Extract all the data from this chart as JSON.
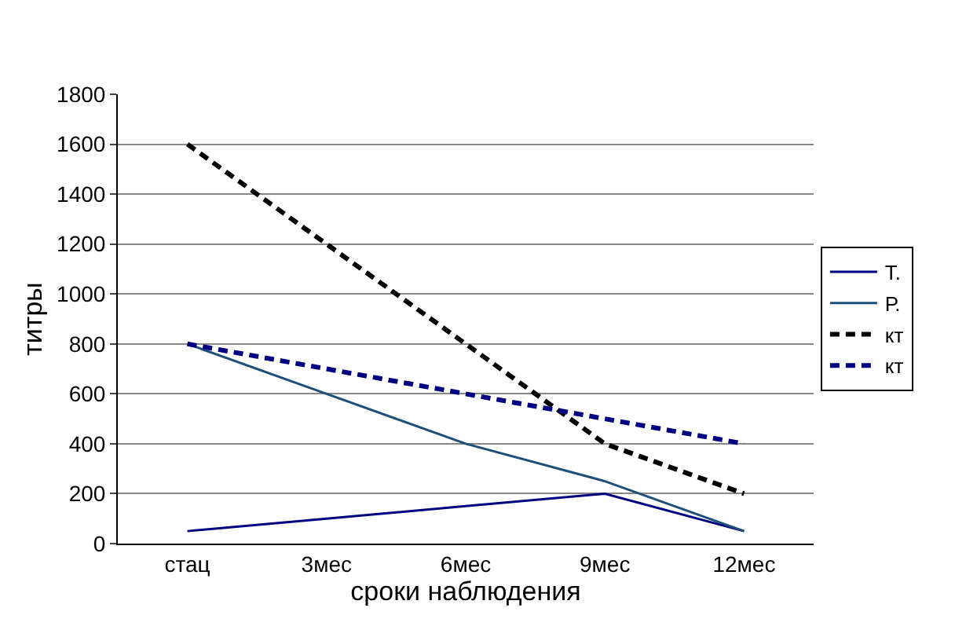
{
  "chart_data": {
    "type": "line",
    "xlabel": "сроки наблюдения",
    "ylabel": "титры",
    "categories": [
      "стац",
      "3мес",
      "6мес",
      "9мес",
      "12мес"
    ],
    "series": [
      {
        "name": "Т.",
        "color": "#000080",
        "values": [
          50,
          100,
          150,
          200,
          50
        ],
        "line_style": "solid"
      },
      {
        "name": "Р.",
        "color": "#1f4e79",
        "values": [
          800,
          600,
          400,
          250,
          50
        ],
        "line_style": "solid"
      },
      {
        "name": "кт",
        "color": "#000000",
        "values": [
          1600,
          1200,
          800,
          400,
          200
        ],
        "line_style": "dashed"
      },
      {
        "name": "кт",
        "color": "#000080",
        "values": [
          800,
          700,
          600,
          500,
          400
        ],
        "line_style": "dashed"
      }
    ],
    "ylim": [
      0,
      1800
    ],
    "yticks": [
      0,
      200,
      400,
      600,
      800,
      1000,
      1200,
      1400,
      1600,
      1800
    ],
    "grid": "y",
    "legend": "right",
    "marker": "none"
  }
}
